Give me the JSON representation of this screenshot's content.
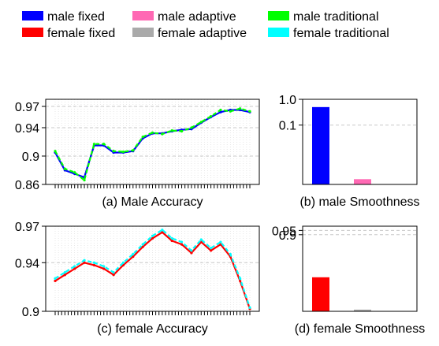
{
  "legend": {
    "placement": "top",
    "entries": [
      {
        "label": "male fixed",
        "color": "#0000ff"
      },
      {
        "label": "female fixed",
        "color": "#ff0000"
      },
      {
        "label": "male adaptive",
        "color": "#ff69b4"
      },
      {
        "label": "female adaptive",
        "color": "#aaaaaa"
      },
      {
        "label": "male traditional",
        "color": "#00ff00"
      },
      {
        "label": "female traditional",
        "color": "#00ffff"
      }
    ]
  },
  "chart_data": [
    {
      "type": "line",
      "title": "(a) Male Accuracy",
      "xlabel": "",
      "ylabel": "",
      "ylim": [
        0.86,
        0.98
      ],
      "yticks": [
        0.86,
        0.9,
        0.94,
        0.97
      ],
      "ytick_labels": [
        "0.86",
        "0.9",
        "0.94",
        "0.97"
      ],
      "grid": true,
      "x": [
        0,
        5,
        10,
        15,
        20,
        25,
        30,
        35,
        40,
        45,
        50,
        55,
        60,
        65,
        70,
        75,
        80,
        85,
        90,
        95,
        100
      ],
      "series": [
        {
          "name": "male fixed",
          "color": "#0000ff",
          "values": [
            0.905,
            0.88,
            0.875,
            0.87,
            0.915,
            0.915,
            0.905,
            0.905,
            0.907,
            0.925,
            0.932,
            0.932,
            0.935,
            0.937,
            0.938,
            0.947,
            0.955,
            0.962,
            0.965,
            0.965,
            0.962
          ]
        },
        {
          "name": "male traditional",
          "color": "#00ff00",
          "values": [
            0.907,
            0.882,
            0.877,
            0.866,
            0.917,
            0.917,
            0.907,
            0.906,
            0.908,
            0.927,
            0.933,
            0.931,
            0.936,
            0.935,
            0.94,
            0.948,
            0.956,
            0.965,
            0.963,
            0.967,
            0.963
          ]
        }
      ]
    },
    {
      "type": "bar",
      "title": "(b) male Smoothness",
      "xlabel": "",
      "ylabel": "",
      "yscale": "log",
      "ylim": [
        0.0005,
        1.0
      ],
      "yticks": [
        0.1,
        1.0
      ],
      "ytick_labels": [
        "0.1",
        "1.0"
      ],
      "grid": true,
      "categories": [
        "male fixed",
        "male adaptive",
        "male traditional"
      ],
      "values": [
        0.5,
        0.0008,
        0.0005
      ],
      "colors": [
        "#0000ff",
        "#ff69b4",
        "#00ff00"
      ]
    },
    {
      "type": "line",
      "title": "(c) female Accuracy",
      "xlabel": "",
      "ylabel": "",
      "ylim": [
        0.9,
        0.97
      ],
      "yticks": [
        0.9,
        0.94,
        0.97
      ],
      "ytick_labels": [
        "0.9",
        "0.94",
        "0.97"
      ],
      "grid": true,
      "x": [
        0,
        5,
        10,
        15,
        20,
        25,
        30,
        35,
        40,
        45,
        50,
        55,
        60,
        65,
        70,
        75,
        80,
        85,
        90,
        95,
        100
      ],
      "series": [
        {
          "name": "female fixed",
          "color": "#ff0000",
          "values": [
            0.925,
            0.93,
            0.935,
            0.94,
            0.938,
            0.935,
            0.93,
            0.938,
            0.945,
            0.953,
            0.96,
            0.965,
            0.958,
            0.955,
            0.948,
            0.957,
            0.95,
            0.955,
            0.945,
            0.925,
            0.902
          ]
        },
        {
          "name": "female traditional",
          "color": "#00ffff",
          "values": [
            0.927,
            0.932,
            0.937,
            0.942,
            0.94,
            0.937,
            0.932,
            0.94,
            0.947,
            0.955,
            0.962,
            0.967,
            0.96,
            0.957,
            0.95,
            0.959,
            0.952,
            0.957,
            0.947,
            0.927,
            0.903
          ]
        }
      ]
    },
    {
      "type": "bar",
      "title": "(d) female Smoothness",
      "xlabel": "",
      "ylabel": "",
      "ylim": [
        0.0,
        1.0
      ],
      "yticks": [
        0.9,
        0.95
      ],
      "ytick_labels": [
        "0.9",
        "0.95"
      ],
      "grid": true,
      "categories": [
        "female fixed",
        "female adaptive",
        "female traditional"
      ],
      "values": [
        0.4,
        0.02,
        0.0
      ],
      "colors": [
        "#ff0000",
        "#aaaaaa",
        "#00ffff"
      ]
    }
  ]
}
